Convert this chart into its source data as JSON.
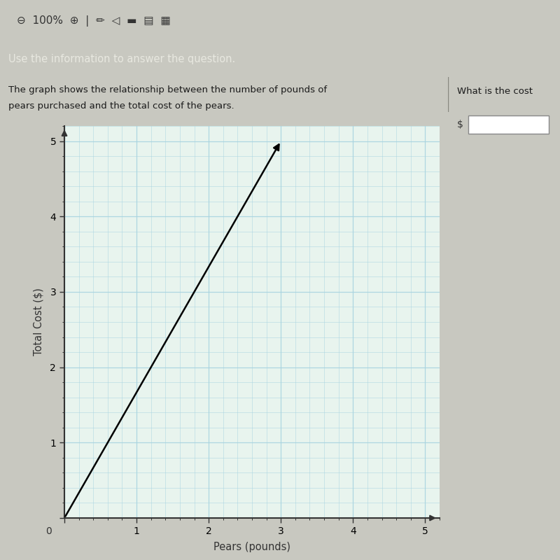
{
  "title_banner": "Use the information to answer the question.",
  "description_line1": "The graph shows the relationship between the number of pounds of",
  "description_line2": "pears purchased and the total cost of the pears.",
  "right_text": "What is the cost",
  "xlabel": "Pears (pounds)",
  "ylabel": "Total Cost ($)",
  "xlim": [
    0,
    5.2
  ],
  "ylim": [
    0,
    5.2
  ],
  "xticks": [
    0,
    1,
    2,
    3,
    4,
    5
  ],
  "yticks": [
    0,
    1,
    2,
    3,
    4,
    5
  ],
  "line_x": [
    0,
    3
  ],
  "line_y": [
    0,
    5
  ],
  "line_color": "#000000",
  "line_width": 1.8,
  "grid_color": "#a8d4e0",
  "toolbar_bg": "#c8c8c0",
  "banner_bg": "#4a453d",
  "banner_text_color": "#e8e8e0",
  "content_bg": "#e8e4dc",
  "plot_bg": "#e8f4ee",
  "desc_text_color": "#1a1a1a",
  "right_panel_bg": "#e8e4dc"
}
